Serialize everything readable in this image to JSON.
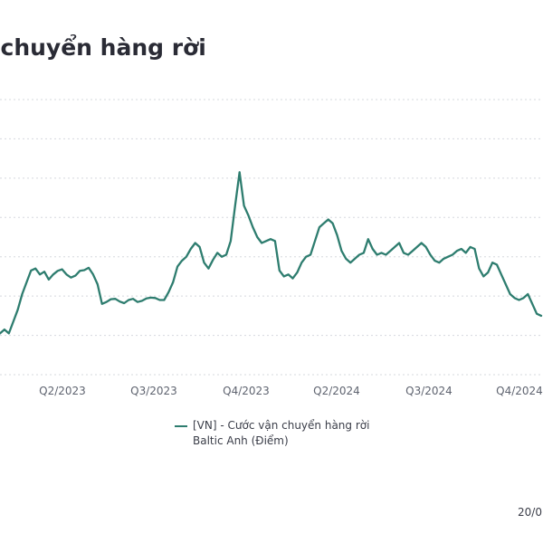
{
  "chart_data": {
    "type": "line",
    "title": "n chuyển hàng rời",
    "x_tick_labels": [
      "Q2/2023",
      "Q3/2023",
      "Q4/2023",
      "Q2/2024",
      "Q3/2024",
      "Q4/2024"
    ],
    "y_gridline_count": 8,
    "grid": true,
    "legend": "bottom",
    "series": [
      {
        "name": "[VN] - Cước vận chuyển hàng rời Baltic Anh (Điểm)",
        "color": "#2e7d6f",
        "values": [
          1.05,
          1.15,
          1.05,
          1.35,
          1.65,
          2.05,
          2.35,
          2.65,
          2.7,
          2.55,
          2.62,
          2.42,
          2.55,
          2.64,
          2.68,
          2.55,
          2.47,
          2.52,
          2.64,
          2.66,
          2.72,
          2.55,
          2.3,
          1.8,
          1.85,
          1.92,
          1.93,
          1.86,
          1.82,
          1.9,
          1.93,
          1.85,
          1.88,
          1.94,
          1.96,
          1.95,
          1.9,
          1.9,
          2.1,
          2.35,
          2.75,
          2.9,
          3.0,
          3.2,
          3.35,
          3.25,
          2.85,
          2.7,
          2.92,
          3.1,
          3.0,
          3.05,
          3.4,
          4.3,
          5.15,
          4.3,
          4.05,
          3.75,
          3.5,
          3.35,
          3.4,
          3.45,
          3.4,
          2.65,
          2.5,
          2.55,
          2.45,
          2.6,
          2.85,
          3.0,
          3.05,
          3.4,
          3.75,
          3.85,
          3.95,
          3.85,
          3.55,
          3.15,
          2.95,
          2.85,
          2.95,
          3.05,
          3.1,
          3.45,
          3.2,
          3.05,
          3.1,
          3.05,
          3.15,
          3.25,
          3.35,
          3.1,
          3.05,
          3.15,
          3.25,
          3.35,
          3.25,
          3.05,
          2.9,
          2.85,
          2.95,
          3.0,
          3.05,
          3.15,
          3.2,
          3.1,
          3.25,
          3.2,
          2.7,
          2.5,
          2.6,
          2.85,
          2.8,
          2.55,
          2.3,
          2.05,
          1.95,
          1.9,
          1.95,
          2.05,
          1.8,
          1.55,
          1.5
        ]
      }
    ]
  },
  "footer_text": "20/0"
}
